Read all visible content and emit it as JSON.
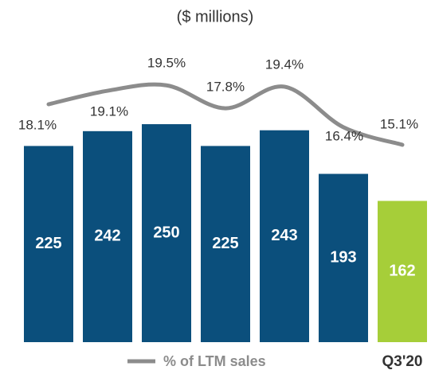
{
  "chart_data": {
    "type": "bar",
    "subtitle": "($ millions)",
    "categories": [
      null,
      null,
      null,
      null,
      null,
      null,
      "Q3'20"
    ],
    "ylim": [
      0,
      355
    ],
    "y2lim": [
      0.5,
      23.4
    ],
    "series": [
      {
        "name": null,
        "type": "bar",
        "colors": [
          "#0b4f7c",
          "#0b4f7c",
          "#0b4f7c",
          "#0b4f7c",
          "#0b4f7c",
          "#0b4f7c",
          "#a6ce39"
        ],
        "values": [
          225,
          242,
          250,
          225,
          243,
          193,
          162
        ]
      },
      {
        "name": "% of LTM sales",
        "type": "line",
        "axis": "y2",
        "color": "#8c8c8c",
        "values": [
          18.1,
          19.1,
          19.5,
          17.8,
          19.4,
          16.4,
          15.1
        ],
        "value_labels": [
          "18.1%",
          "19.1%",
          "19.5%",
          "17.8%",
          "19.4%",
          "16.4%",
          "15.1%"
        ]
      }
    ]
  }
}
